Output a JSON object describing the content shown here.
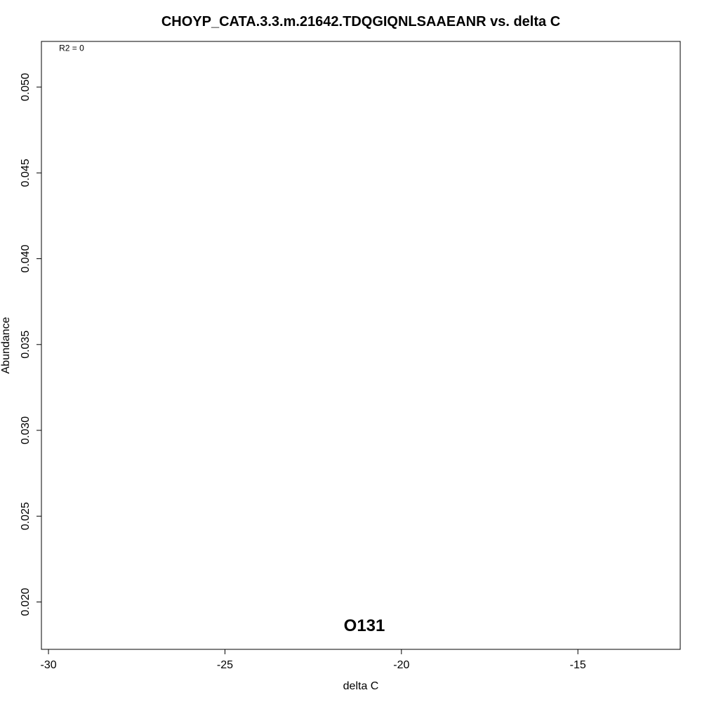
{
  "chart_data": {
    "type": "scatter",
    "title": "CHOYP_CATA.3.3.m.21642.TDQGIQNLSAAEANR vs. delta C",
    "xlabel": "delta C",
    "ylabel": "Abundance",
    "xlim": [
      -30.2,
      -12.1
    ],
    "ylim": [
      0.01724,
      0.05266
    ],
    "x_ticks": [
      -30,
      -25,
      -20,
      -15
    ],
    "x_tick_labels": [
      "-30",
      "-25",
      "-20",
      "-15"
    ],
    "y_ticks": [
      0.02,
      0.025,
      0.03,
      0.035,
      0.04,
      0.045,
      0.05
    ],
    "y_tick_labels": [
      "0.020",
      "0.025",
      "0.030",
      "0.035",
      "0.040",
      "0.045",
      "0.050"
    ],
    "grid": false,
    "series": [
      {
        "points": []
      }
    ],
    "annotations": [
      {
        "id": "r2",
        "text": "R2 = 0",
        "x": -29.7,
        "y": 0.0521,
        "size": "small",
        "anchor": "start"
      },
      {
        "id": "sample",
        "text": "O131",
        "x": -21.05,
        "y": 0.0183,
        "size": "big",
        "anchor": "middle"
      }
    ]
  }
}
